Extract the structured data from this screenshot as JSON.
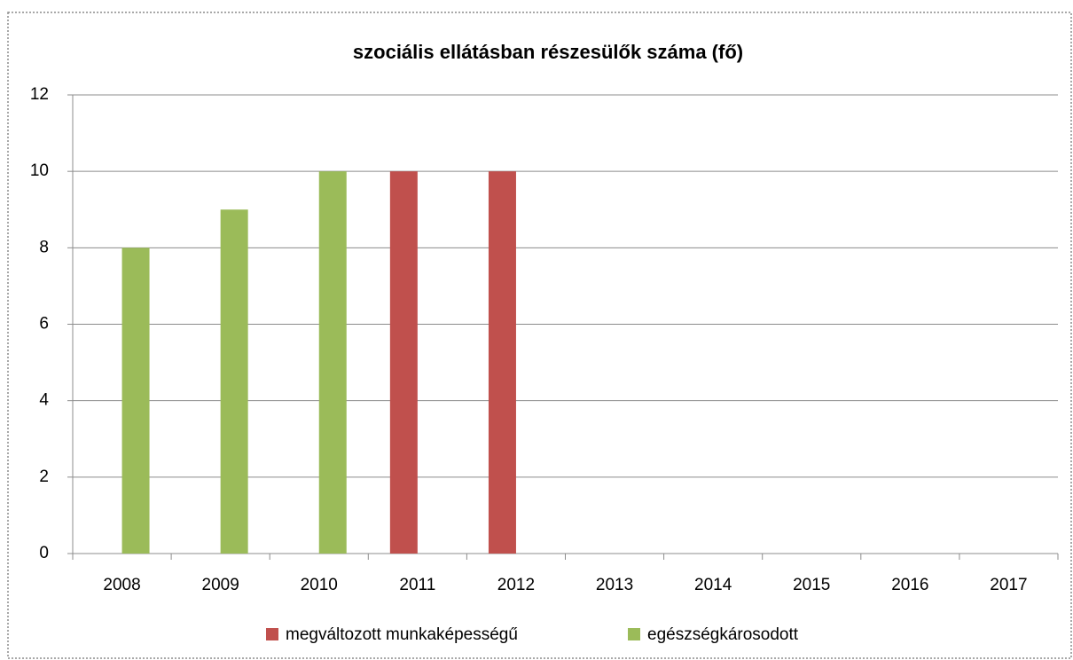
{
  "chart_data": {
    "type": "bar",
    "title": "szociális ellátásban részesülők száma (fő)",
    "categories": [
      "2008",
      "2009",
      "2010",
      "2011",
      "2012",
      "2013",
      "2014",
      "2015",
      "2016",
      "2017"
    ],
    "series": [
      {
        "name": "megváltozott munkaképességű",
        "color": "#c0504d",
        "values": [
          null,
          null,
          null,
          10,
          10,
          null,
          null,
          null,
          null,
          null
        ]
      },
      {
        "name": "egészségkárosodott",
        "color": "#9bbb59",
        "values": [
          8,
          9,
          10,
          null,
          null,
          null,
          null,
          null,
          null,
          null
        ]
      }
    ],
    "ylim": [
      0,
      12
    ],
    "yticks": [
      0,
      2,
      4,
      6,
      8,
      10,
      12
    ],
    "grid": true,
    "legend": "bottom"
  }
}
